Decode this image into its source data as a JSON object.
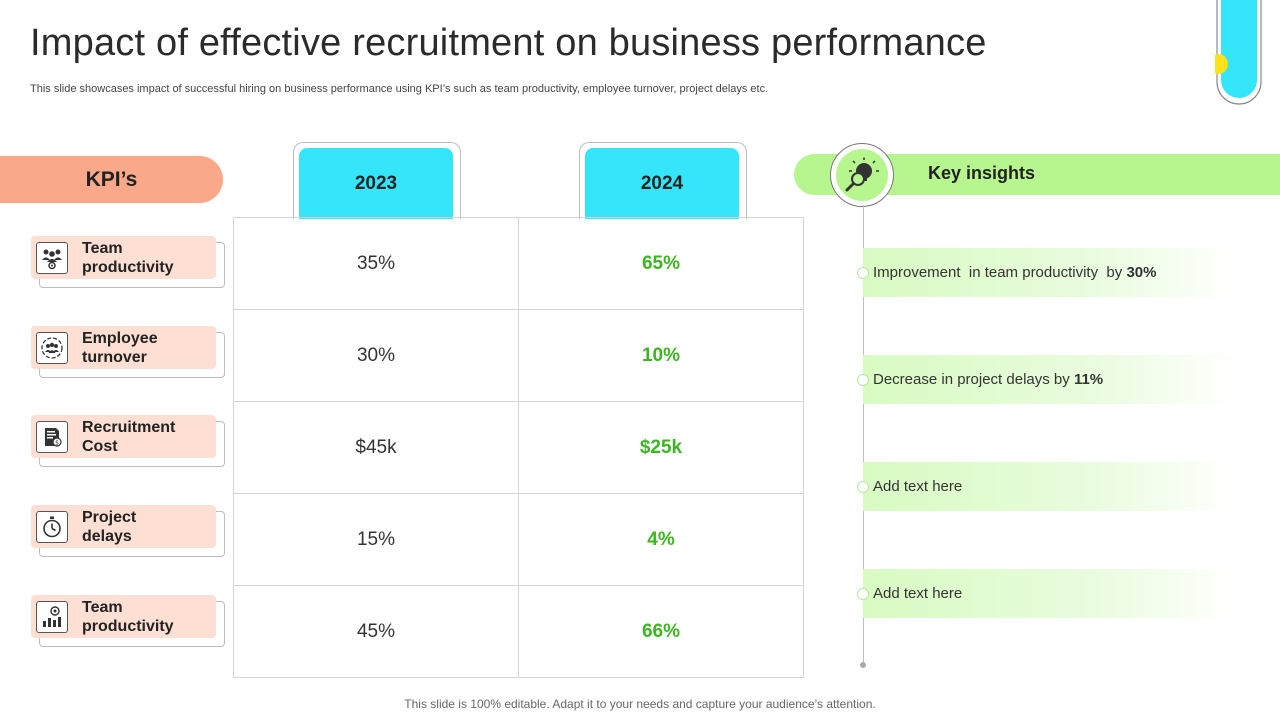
{
  "title": "Impact of effective recruitment on business performance",
  "subtitle": "This slide showcases impact of successful hiring on business performance using KPI’s such as team productivity, employee turnover, project delays etc.",
  "kpi_header": "KPI’s",
  "years": [
    "2023",
    "2024"
  ],
  "kpis": [
    {
      "label": "Team\nproductivity",
      "icon": "team-icon",
      "v2023": "35%",
      "v2024": "65%"
    },
    {
      "label": "Employee\nturnover",
      "icon": "turnover-icon",
      "v2023": "30%",
      "v2024": "10%"
    },
    {
      "label": "Recruitment\nCost",
      "icon": "invoice-icon",
      "v2023": "$45k",
      "v2024": "$25k"
    },
    {
      "label": "Project\ndelays",
      "icon": "stopwatch-icon",
      "v2023": "15%",
      "v2024": "4%"
    },
    {
      "label": "Team\nproductivity",
      "icon": "productivity-chart-icon",
      "v2023": "45%",
      "v2024": "66%"
    }
  ],
  "insights_title": "Key insights",
  "insights": [
    {
      "text": "Improvement  in team productivity  by ",
      "bold": "30%"
    },
    {
      "text": "Decrease in project delays by ",
      "bold": "11%"
    },
    {
      "text": "Add text here",
      "bold": ""
    },
    {
      "text": "Add text here",
      "bold": ""
    }
  ],
  "footer": "This slide is 100% editable. Adapt it to your needs and capture your audience’s attention.",
  "colors": {
    "kpi_header": "#f9a98a",
    "kpi_card": "#fddfd3",
    "year_tab": "#35e6fb",
    "value_2024": "#3cb521",
    "insights_bar": "#b7f58f",
    "tube_yellow": "#ffe21a"
  }
}
